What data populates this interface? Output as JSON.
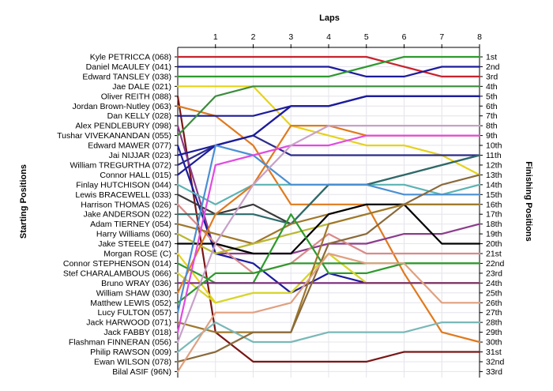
{
  "chart_data": {
    "type": "line",
    "title": "",
    "top_axis_label": "Laps",
    "left_axis_label": "Starting Positions",
    "right_axis_label": "Finishing Positions",
    "x": [
      0,
      1,
      2,
      3,
      4,
      5,
      6,
      7,
      8
    ],
    "x_tick_labels": [
      "1",
      "2",
      "3",
      "4",
      "5",
      "6",
      "7",
      "8"
    ],
    "y_range": [
      1,
      33
    ],
    "y_reversed": true,
    "grid": true,
    "drivers": [
      "Kyle PETRICCA (068)",
      "Daniel McAULEY (041)",
      "Edward TANSLEY (038)",
      "Jae DALE (021)",
      "Oliver REITH (088)",
      "Jordan Brown-Nutley (063)",
      "Dan KELLY (028)",
      "Alex PENDLEBURY (098)",
      "Tushar VIVEKANANDAN (055)",
      "Edward MAWER (077)",
      "Jai NIJJAR (023)",
      "William TREGURTHA (072)",
      "Connor HALL (015)",
      "Finlay HUTCHISON (044)",
      "Lewis BRACEWELL (033)",
      "Harrison THOMAS (026)",
      "Jake ANDERSON (022)",
      "Adam TIERNEY (054)",
      "Harry Williams (060)",
      "Jake STEELE (047)",
      "Morgan ROSE (C)",
      "Connor STEPHENSON (014)",
      "Stef CHARALAMBOUS (066)",
      "Bruno WRAY (036)",
      "William SHAW (030)",
      "Matthew LEWIS (052)",
      "Lucy FULTON (057)",
      "Jack HARWOOD (071)",
      "Jack FABBY (018)",
      "Flashman FINNERAN (056)",
      "Philip RAWSON (009)",
      "Ewan WILSON (078)",
      "Bilal ASIF (96N)"
    ],
    "finishing_labels": [
      "1st",
      "2nd",
      "3rd",
      "4th",
      "5th",
      "6th",
      "7th",
      "8th",
      "9th",
      "10th",
      "11th",
      "12th",
      "13th",
      "14th",
      "15th",
      "16th",
      "17th",
      "18th",
      "19th",
      "20th",
      "21st",
      "22nd",
      "23rd",
      "24th",
      "25th",
      "26th",
      "27th",
      "28th",
      "29th",
      "30th",
      "31st",
      "32nd",
      "33rd"
    ],
    "series": [
      {
        "color": "#c8232c",
        "values": [
          1,
          1,
          1,
          1,
          1,
          1,
          2,
          3,
          3
        ]
      },
      {
        "color": "#1c1c9c",
        "values": [
          2,
          2,
          2,
          2,
          2,
          3,
          3,
          2,
          2
        ]
      },
      {
        "color": "#2e9a2e",
        "values": [
          3,
          3,
          3,
          3,
          3,
          2,
          1,
          1,
          1
        ]
      },
      {
        "color": "#e6d21c",
        "values": [
          4,
          4,
          4,
          8,
          9,
          10,
          10,
          11,
          13
        ]
      },
      {
        "color": "#7a1616",
        "values": [
          5,
          29,
          32,
          32,
          32,
          32,
          31,
          31,
          31
        ]
      },
      {
        "color": "#e07a1e",
        "values": [
          6,
          7,
          10,
          16,
          16,
          16,
          23,
          29,
          30
        ]
      },
      {
        "color": "#1c1c9c",
        "values": [
          7,
          7,
          7,
          6,
          6,
          5,
          5,
          5,
          5
        ]
      },
      {
        "color": "#8c3c8c",
        "values": [
          8,
          21,
          21,
          21,
          20,
          20,
          19,
          19,
          18
        ]
      },
      {
        "color": "#3c8c3c",
        "values": [
          9,
          5,
          4,
          4,
          4,
          4,
          4,
          4,
          4
        ]
      },
      {
        "color": "#1c1c9c",
        "values": [
          10,
          21,
          22,
          25,
          23,
          24,
          24,
          24,
          24
        ]
      },
      {
        "color": "#1c1c9c",
        "values": [
          11,
          10,
          9,
          6,
          6,
          5,
          5,
          5,
          5
        ]
      },
      {
        "color": "#2c2c8c",
        "values": [
          12,
          10,
          9,
          11,
          11,
          11,
          11,
          11,
          11
        ]
      },
      {
        "color": "#1c1c9c",
        "values": [
          13,
          10,
          9,
          6,
          6,
          5,
          5,
          5,
          5
        ]
      },
      {
        "color": "#5bb3b3",
        "values": [
          14,
          16,
          14,
          14,
          14,
          14,
          14,
          15,
          14
        ]
      },
      {
        "color": "#3a3a3a",
        "values": [
          15,
          17,
          16,
          18,
          14,
          14,
          13,
          12,
          11
        ]
      },
      {
        "color": "#d98a8a",
        "values": [
          16,
          20,
          23,
          22,
          19,
          21,
          21,
          21,
          21
        ]
      },
      {
        "color": "#2e6b6b",
        "values": [
          17,
          17,
          17,
          18,
          14,
          14,
          13,
          12,
          11
        ]
      },
      {
        "color": "#a0782c",
        "values": [
          18,
          19,
          20,
          18,
          17,
          16,
          16,
          16,
          16
        ]
      },
      {
        "color": "#b8b830",
        "values": [
          19,
          21,
          20,
          19,
          18,
          17,
          16,
          16,
          16
        ]
      },
      {
        "color": "#000000",
        "values": [
          20,
          20,
          21,
          21,
          17,
          16,
          16,
          20,
          20
        ]
      },
      {
        "color": "#e6d21c",
        "values": [
          21,
          26,
          25,
          25,
          21,
          24,
          24,
          24,
          24
        ]
      },
      {
        "color": "#2e9a2e",
        "values": [
          22,
          24,
          24,
          17,
          23,
          23,
          22,
          22,
          22
        ]
      },
      {
        "color": "#d6d62c",
        "values": [
          23,
          26,
          25,
          25,
          21,
          24,
          24,
          24,
          24
        ]
      },
      {
        "color": "#7a2a7a",
        "values": [
          24,
          24,
          24,
          24,
          24,
          24,
          24,
          24,
          24
        ]
      },
      {
        "color": "#e07a1e",
        "values": [
          25,
          17,
          14,
          8,
          8,
          9,
          9,
          9,
          9
        ]
      },
      {
        "color": "#2e9a2e",
        "values": [
          26,
          23,
          23,
          22,
          22,
          22,
          22,
          22,
          22
        ]
      },
      {
        "color": "#4a8fd4",
        "values": [
          27,
          10,
          11,
          14,
          14,
          14,
          15,
          15,
          15
        ]
      },
      {
        "color": "#a0782c",
        "values": [
          28,
          29,
          29,
          29,
          18,
          17,
          16,
          16,
          16
        ]
      },
      {
        "color": "#e14be1",
        "values": [
          29,
          12,
          11,
          10,
          10,
          9,
          9,
          9,
          9
        ]
      },
      {
        "color": "#c8a0c8",
        "values": [
          30,
          20,
          14,
          10,
          8,
          8,
          8,
          8,
          8
        ]
      },
      {
        "color": "#7ab8b8",
        "values": [
          31,
          28,
          30,
          30,
          29,
          29,
          29,
          28,
          28
        ]
      },
      {
        "color": "#8a6a3a",
        "values": [
          32,
          31,
          29,
          29,
          20,
          19,
          16,
          14,
          13
        ]
      },
      {
        "color": "#e0a080",
        "values": [
          33,
          27,
          27,
          26,
          21,
          22,
          22,
          26,
          26
        ]
      }
    ]
  }
}
